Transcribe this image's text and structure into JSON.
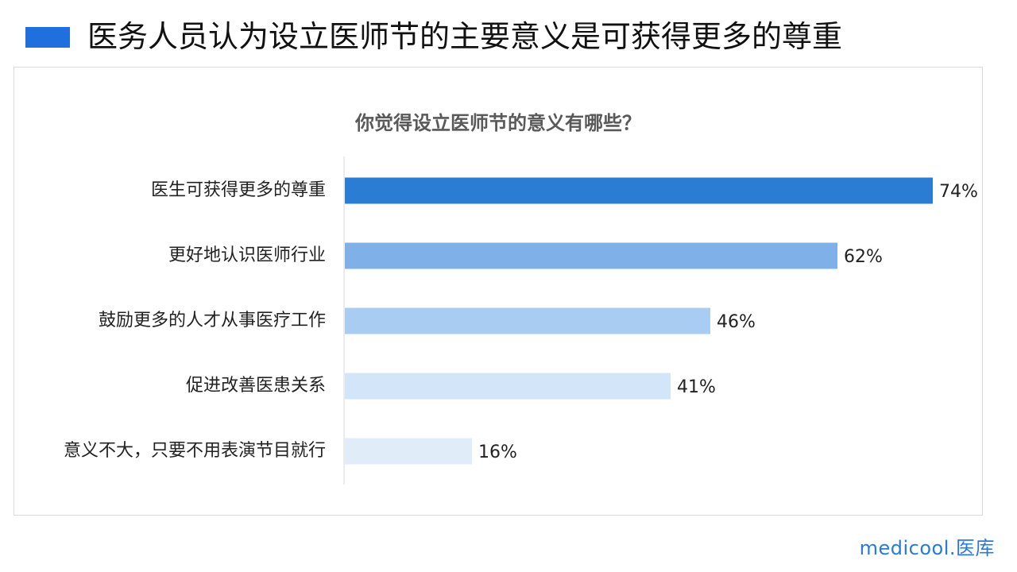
{
  "header": {
    "title": "医务人员认为设立医师节的主要意义是可获得更多的尊重"
  },
  "footer": {
    "logo_text": "medicool.医库"
  },
  "colors": {
    "marker": "#1f6fde"
  },
  "chart_data": {
    "type": "bar",
    "orientation": "horizontal",
    "title": "你觉得设立医师节的意义有哪些？",
    "categories": [
      "医生可获得更多的尊重",
      "更好地认识医师行业",
      "鼓励更多的人才从事医疗工作",
      "促进改善医患关系",
      "意义不大，只要不用表演节目就行"
    ],
    "values": [
      74,
      62,
      46,
      41,
      16
    ],
    "value_labels": [
      "74%",
      "62%",
      "46%",
      "41%",
      "16%"
    ],
    "unit": "%",
    "xlim": [
      0,
      74
    ],
    "bar_colors": [
      "#2b7cd3",
      "#7fb1e8",
      "#a9cdf2",
      "#d2e5f9",
      "#e0ecf8"
    ],
    "grid": false,
    "legend": "none"
  }
}
